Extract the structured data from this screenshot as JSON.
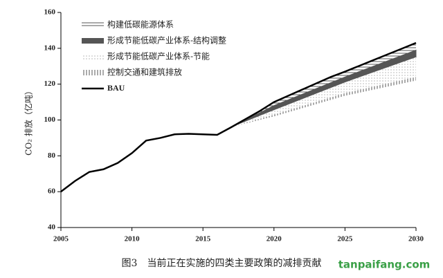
{
  "chart_data": {
    "type": "line",
    "y_label": "CO₂ 排放（亿吨）",
    "caption": "图3　当前正在实施的四类主要政策的减排贡献",
    "watermark": "tanpaifang.com",
    "xlim": [
      2005,
      2030
    ],
    "xticks": [
      2005,
      2010,
      2015,
      2020,
      2025,
      2030
    ],
    "ylim": [
      40,
      160
    ],
    "yticks": [
      40,
      60,
      80,
      100,
      120,
      140,
      160
    ],
    "grid": false,
    "legend": "upper left",
    "x": [
      2005,
      2006,
      2007,
      2008,
      2009,
      2010,
      2011,
      2012,
      2013,
      2014,
      2015,
      2016,
      2017,
      2018,
      2019,
      2020,
      2021,
      2022,
      2023,
      2024,
      2025,
      2026,
      2027,
      2028,
      2029,
      2030
    ],
    "series": [
      {
        "name": "构建低碳能源体系",
        "color": "#555555",
        "pattern": "hlines",
        "x": [
          2017,
          2020,
          2025,
          2030
        ],
        "values": [
          0,
          2,
          3,
          4
        ]
      },
      {
        "name": "形成节能低碳产业体系-结构调整",
        "color": "#555555",
        "pattern": "solid",
        "x": [
          2017,
          2020,
          2025,
          2030
        ],
        "values": [
          0,
          2.5,
          3,
          4
        ]
      },
      {
        "name": "形成节能低碳产业体系-节能",
        "color": "#888888",
        "pattern": "dots",
        "x": [
          2017,
          2020,
          2025,
          2030
        ],
        "values": [
          0,
          2.5,
          6,
          11
        ]
      },
      {
        "name": "控制交通和建筑排放",
        "color": "#555555",
        "pattern": "vlines",
        "x": [
          2017,
          2020,
          2025,
          2030
        ],
        "values": [
          0,
          1,
          1.5,
          2
        ]
      },
      {
        "name": "BAU",
        "color": "#000000",
        "pattern": "line",
        "values": [
          60,
          66,
          71,
          72.5,
          76,
          81.5,
          88.5,
          90,
          92,
          92.3,
          92,
          91.7,
          96,
          100.5,
          105,
          110,
          113.5,
          117,
          120.5,
          124,
          127,
          130.2,
          133.4,
          136.6,
          139.8,
          143
        ]
      }
    ]
  }
}
